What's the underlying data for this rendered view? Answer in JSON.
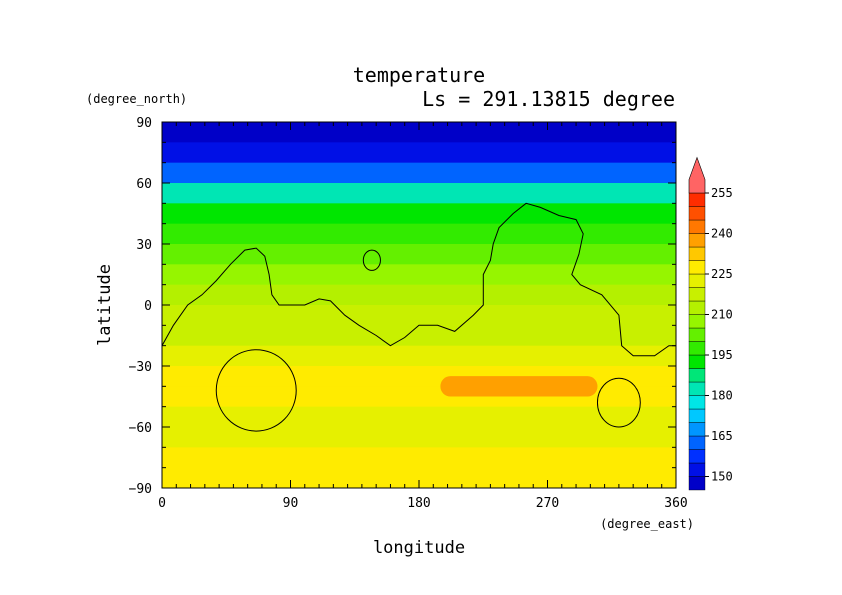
{
  "chart_data": {
    "type": "heatmap",
    "title": "temperature",
    "subtitle": "Ls = 291.13815 degree",
    "xlabel": "longitude",
    "ylabel": "latitude",
    "xunit": "(degree_east)",
    "yunit": "(degree_north)",
    "xlim": [
      0,
      360
    ],
    "ylim": [
      -90,
      90
    ],
    "xticks": [
      0,
      90,
      180,
      270,
      360
    ],
    "yticks": [
      90,
      60,
      30,
      0,
      -30,
      -60,
      -90
    ],
    "colorbar": {
      "levels": [
        145,
        150,
        155,
        160,
        165,
        170,
        175,
        180,
        185,
        190,
        195,
        200,
        205,
        210,
        215,
        220,
        225,
        230,
        235,
        240,
        245,
        250,
        255,
        260
      ],
      "labels": [
        150,
        165,
        180,
        195,
        210,
        225,
        240,
        255
      ],
      "colors": [
        "#0000c8",
        "#0010e6",
        "#0030ff",
        "#0064ff",
        "#0096ff",
        "#00c8ff",
        "#00e6e6",
        "#00e6b4",
        "#00e678",
        "#00e600",
        "#32eb00",
        "#64f000",
        "#96f500",
        "#b4f000",
        "#c8f000",
        "#e6f000",
        "#ffeb00",
        "#ffc800",
        "#ffa000",
        "#ff7800",
        "#ff5000",
        "#ff2d00",
        "#ff6464"
      ],
      "extend": "max"
    },
    "temperature_by_latitude": [
      {
        "lat": 85,
        "value": 148
      },
      {
        "lat": 75,
        "value": 152
      },
      {
        "lat": 65,
        "value": 163
      },
      {
        "lat": 55,
        "value": 181
      },
      {
        "lat": 45,
        "value": 193
      },
      {
        "lat": 35,
        "value": 199
      },
      {
        "lat": 25,
        "value": 204
      },
      {
        "lat": 15,
        "value": 208
      },
      {
        "lat": 5,
        "value": 212
      },
      {
        "lat": -5,
        "value": 215
      },
      {
        "lat": -15,
        "value": 219
      },
      {
        "lat": -25,
        "value": 223
      },
      {
        "lat": -35,
        "value": 225
      },
      {
        "lat": -45,
        "value": 226
      },
      {
        "lat": -55,
        "value": 224
      },
      {
        "lat": -65,
        "value": 223
      },
      {
        "lat": -75,
        "value": 225
      },
      {
        "lat": -85,
        "value": 227
      }
    ],
    "topography_contour": [
      [
        0,
        -20
      ],
      [
        8,
        -10
      ],
      [
        18,
        0
      ],
      [
        28,
        5
      ],
      [
        38,
        12
      ],
      [
        48,
        20
      ],
      [
        58,
        27
      ],
      [
        66,
        28
      ],
      [
        72,
        24
      ],
      [
        75,
        15
      ],
      [
        77,
        5
      ],
      [
        82,
        0
      ],
      [
        90,
        0
      ],
      [
        100,
        0
      ],
      [
        110,
        3
      ],
      [
        118,
        2
      ],
      [
        128,
        -5
      ],
      [
        138,
        -10
      ],
      [
        150,
        -15
      ],
      [
        160,
        -20
      ],
      [
        170,
        -16
      ],
      [
        180,
        -10
      ],
      [
        193,
        -10
      ],
      [
        205,
        -13
      ],
      [
        218,
        -5
      ],
      [
        225,
        0
      ],
      [
        225,
        15
      ],
      [
        230,
        22
      ],
      [
        232,
        30
      ],
      [
        236,
        38
      ],
      [
        246,
        45
      ],
      [
        255,
        50
      ],
      [
        265,
        48
      ],
      [
        278,
        44
      ],
      [
        290,
        42
      ],
      [
        295,
        35
      ],
      [
        292,
        25
      ],
      [
        287,
        15
      ],
      [
        293,
        10
      ],
      [
        308,
        5
      ],
      [
        320,
        -5
      ],
      [
        322,
        -20
      ],
      [
        330,
        -25
      ],
      [
        345,
        -25
      ],
      [
        355,
        -20
      ],
      [
        360,
        -20
      ]
    ],
    "closed_contours": [
      {
        "name": "south-western basin",
        "center": [
          66,
          -42
        ],
        "radius": [
          28,
          20
        ]
      },
      {
        "name": "south-eastern basin",
        "center": [
          320,
          -48
        ],
        "radius": [
          15,
          12
        ]
      },
      {
        "name": "small northern loop",
        "center": [
          147,
          22
        ],
        "radius": [
          6,
          5
        ]
      }
    ],
    "warm_anomaly_band": {
      "lat_range": [
        -45,
        -35
      ],
      "lon_range": [
        195,
        305
      ],
      "value": 237
    },
    "grid": false,
    "legend_position": "right"
  }
}
